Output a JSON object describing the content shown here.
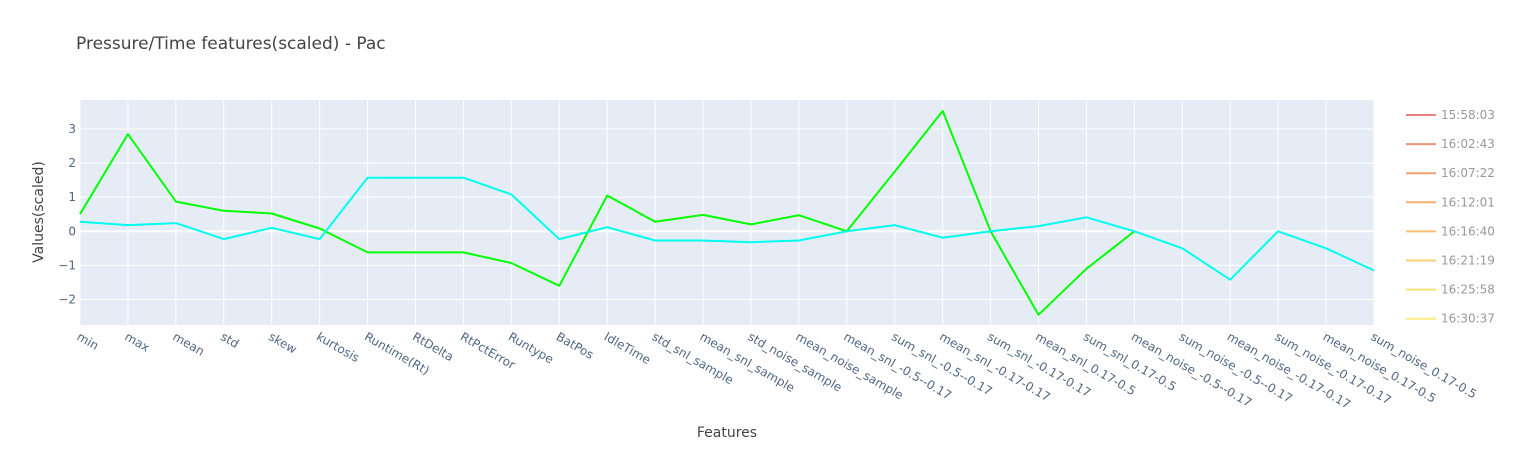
{
  "chart_data": {
    "type": "line",
    "title": "Pressure/Time features(scaled) - Pac",
    "xlabel": "Features",
    "ylabel": "Values(scaled)",
    "ylim": [
      -2.75,
      3.85
    ],
    "yticks": [
      -2,
      -1,
      0,
      1,
      2,
      3
    ],
    "ytick_labels": [
      "−2",
      "−1",
      "0",
      "1",
      "2",
      "3"
    ],
    "grid": true,
    "legend_position": "right",
    "categories": [
      "min",
      "max",
      "mean",
      "std",
      "skew",
      "kurtosis",
      "Runtime(Rt)",
      "RtDelta",
      "RtPctError",
      "Runtype",
      "BatPos",
      "IdleTime",
      "std_snl_sample",
      "mean_snl_sample",
      "std_noise_sample",
      "mean_noise_sample",
      "mean_snl_-0.5--0.17",
      "sum_snl_-0.5--0.17",
      "mean_snl_-0.17-0.17",
      "sum_snl_-0.17-0.17",
      "mean_snl_0.17-0.5",
      "sum_snl_0.17-0.5",
      "mean_noise_-0.5--0.17",
      "sum_noise_-0.5--0.17",
      "mean_noise_-0.17-0.17",
      "sum_noise_-0.17-0.17",
      "mean_noise_0.17-0.5",
      "sum_noise_0.17-0.5"
    ],
    "series": [
      {
        "name": "",
        "color": "#00ff00",
        "values": [
          0.5,
          2.85,
          0.87,
          0.6,
          0.52,
          0.08,
          -0.62,
          -0.62,
          -0.62,
          -0.93,
          -1.6,
          1.05,
          0.28,
          0.48,
          0.2,
          0.47,
          0.0,
          1.75,
          3.53,
          0.0,
          -2.45,
          -1.1,
          0.0,
          null,
          null,
          null,
          null,
          null
        ]
      },
      {
        "name": "",
        "color": "#00ffee",
        "values": [
          0.28,
          0.18,
          0.24,
          -0.23,
          0.1,
          -0.23,
          1.57,
          1.57,
          1.57,
          1.08,
          -0.23,
          0.12,
          -0.27,
          -0.27,
          -0.32,
          -0.27,
          0.0,
          0.18,
          -0.19,
          0.0,
          0.15,
          0.41,
          0.0,
          -0.5,
          -1.42,
          0.0,
          -0.5,
          -1.15
        ]
      }
    ],
    "legend": [
      {
        "label": "15:58:03",
        "color": "#ef8080"
      },
      {
        "label": "16:02:43",
        "color": "#ef9078"
      },
      {
        "label": "16:07:22",
        "color": "#f2a070"
      },
      {
        "label": "16:12:01",
        "color": "#f4af70"
      },
      {
        "label": "16:16:40",
        "color": "#f6c070"
      },
      {
        "label": "16:21:19",
        "color": "#f8d070"
      },
      {
        "label": "16:25:58",
        "color": "#fbdf75"
      },
      {
        "label": "16:30:37",
        "color": "#fdee80"
      }
    ]
  }
}
